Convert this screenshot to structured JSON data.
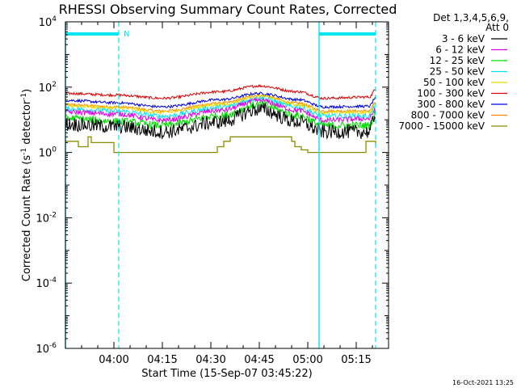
{
  "chart_data": {
    "type": "line",
    "title": "RHESSI Observing Summary Count Rates, Corrected",
    "xlabel": "Start Time (15-Sep-07 03:45:22)",
    "ylabel_main": "Corrected Count Rate (s",
    "ylabel_sup1": "-1",
    "ylabel_mid": " detector",
    "ylabel_sup2": "-1",
    "ylabel_end": ")",
    "footer": "16-Oct-2021 13:25",
    "legend_header": [
      "Det 1,3,4,5,6,9,",
      "Att 0"
    ],
    "yscale": "log",
    "ylim_exp": [
      -6,
      4
    ],
    "xlim_min": [
      0,
      100
    ],
    "x_ticks": [
      {
        "min": 15,
        "label": "04:00"
      },
      {
        "min": 30,
        "label": "04:15"
      },
      {
        "min": 45,
        "label": "04:30"
      },
      {
        "min": 60,
        "label": "04:45"
      },
      {
        "min": 75,
        "label": "05:00"
      },
      {
        "min": 90,
        "label": "05:15"
      }
    ],
    "y_ticks": [
      {
        "exp": 4,
        "base": "10",
        "sup": "4"
      },
      {
        "exp": 2,
        "base": "10",
        "sup": "2"
      },
      {
        "exp": 0,
        "base": "10",
        "sup": "0"
      },
      {
        "exp": -2,
        "base": "10",
        "sup": "-2"
      },
      {
        "exp": -4,
        "base": "10",
        "sup": "-4"
      },
      {
        "exp": -6,
        "base": "10",
        "sup": "-6"
      }
    ],
    "night_intervals": [
      {
        "start": 0,
        "end": 16.5,
        "label": "N"
      },
      {
        "start": 78.5,
        "end": 96,
        "label": ""
      }
    ],
    "indicator_color": "#00e5ee",
    "series": [
      {
        "name": "3 - 6 keV",
        "color": "#000000",
        "min_pts": [
          [
            0,
            6
          ],
          [
            16,
            5
          ],
          [
            30,
            3.5
          ],
          [
            48,
            7
          ],
          [
            60,
            17
          ],
          [
            72,
            7
          ],
          [
            80,
            3.5
          ],
          [
            94,
            3.5
          ],
          [
            96,
            12
          ]
        ],
        "noise": 0.22
      },
      {
        "name": "6 - 12 keV",
        "color": "#e600e6",
        "min_pts": [
          [
            0,
            16
          ],
          [
            16,
            14
          ],
          [
            30,
            9
          ],
          [
            48,
            18
          ],
          [
            60,
            36
          ],
          [
            72,
            18
          ],
          [
            80,
            9
          ],
          [
            94,
            10
          ],
          [
            96,
            20
          ]
        ],
        "noise": 0.08
      },
      {
        "name": "12 - 25 keV",
        "color": "#00dd00",
        "min_pts": [
          [
            0,
            10
          ],
          [
            16,
            8
          ],
          [
            30,
            6
          ],
          [
            48,
            12
          ],
          [
            60,
            26
          ],
          [
            72,
            12
          ],
          [
            80,
            6
          ],
          [
            94,
            6
          ],
          [
            96,
            14
          ]
        ],
        "noise": 0.12
      },
      {
        "name": "25 - 50 keV",
        "color": "#00e5ee",
        "min_pts": [
          [
            0,
            20
          ],
          [
            16,
            17
          ],
          [
            30,
            12
          ],
          [
            48,
            22
          ],
          [
            60,
            42
          ],
          [
            72,
            22
          ],
          [
            80,
            12
          ],
          [
            94,
            12
          ],
          [
            96,
            24
          ]
        ],
        "noise": 0.08
      },
      {
        "name": "50 - 100 keV",
        "color": "#e8d800",
        "min_pts": [
          [
            0,
            26
          ],
          [
            16,
            22
          ],
          [
            30,
            16
          ],
          [
            48,
            28
          ],
          [
            60,
            50
          ],
          [
            72,
            28
          ],
          [
            80,
            16
          ],
          [
            94,
            16
          ],
          [
            96,
            30
          ]
        ],
        "noise": 0.05
      },
      {
        "name": "100 - 300 keV",
        "color": "#dd0000",
        "min_pts": [
          [
            0,
            62
          ],
          [
            16,
            55
          ],
          [
            30,
            44
          ],
          [
            48,
            70
          ],
          [
            60,
            105
          ],
          [
            72,
            70
          ],
          [
            80,
            44
          ],
          [
            94,
            48
          ],
          [
            96,
            80
          ]
        ],
        "noise": 0.04
      },
      {
        "name": "300 - 800 keV",
        "color": "#0000dd",
        "min_pts": [
          [
            0,
            38
          ],
          [
            16,
            32
          ],
          [
            30,
            24
          ],
          [
            48,
            40
          ],
          [
            60,
            62
          ],
          [
            72,
            40
          ],
          [
            80,
            24
          ],
          [
            94,
            25
          ],
          [
            96,
            45
          ]
        ],
        "noise": 0.04
      },
      {
        "name": "800 - 7000 keV",
        "color": "#ff8800",
        "min_pts": [
          [
            0,
            28
          ],
          [
            16,
            24
          ],
          [
            30,
            18
          ],
          [
            48,
            31
          ],
          [
            60,
            54
          ],
          [
            72,
            31
          ],
          [
            80,
            18
          ],
          [
            94,
            18
          ],
          [
            96,
            34
          ]
        ],
        "noise": 0.04
      },
      {
        "name": "7000 - 15000 keV",
        "color": "#8c8c00",
        "steps": [
          [
            0,
            2.2
          ],
          [
            4,
            1.5
          ],
          [
            7,
            3
          ],
          [
            8,
            2
          ],
          [
            15,
            1
          ],
          [
            47,
            1.5
          ],
          [
            49,
            2.2
          ],
          [
            51,
            3
          ],
          [
            70,
            2.2
          ],
          [
            71,
            1.5
          ],
          [
            73,
            1.2
          ],
          [
            75,
            1
          ],
          [
            93,
            2.2
          ],
          [
            96,
            1.8
          ]
        ]
      }
    ]
  }
}
